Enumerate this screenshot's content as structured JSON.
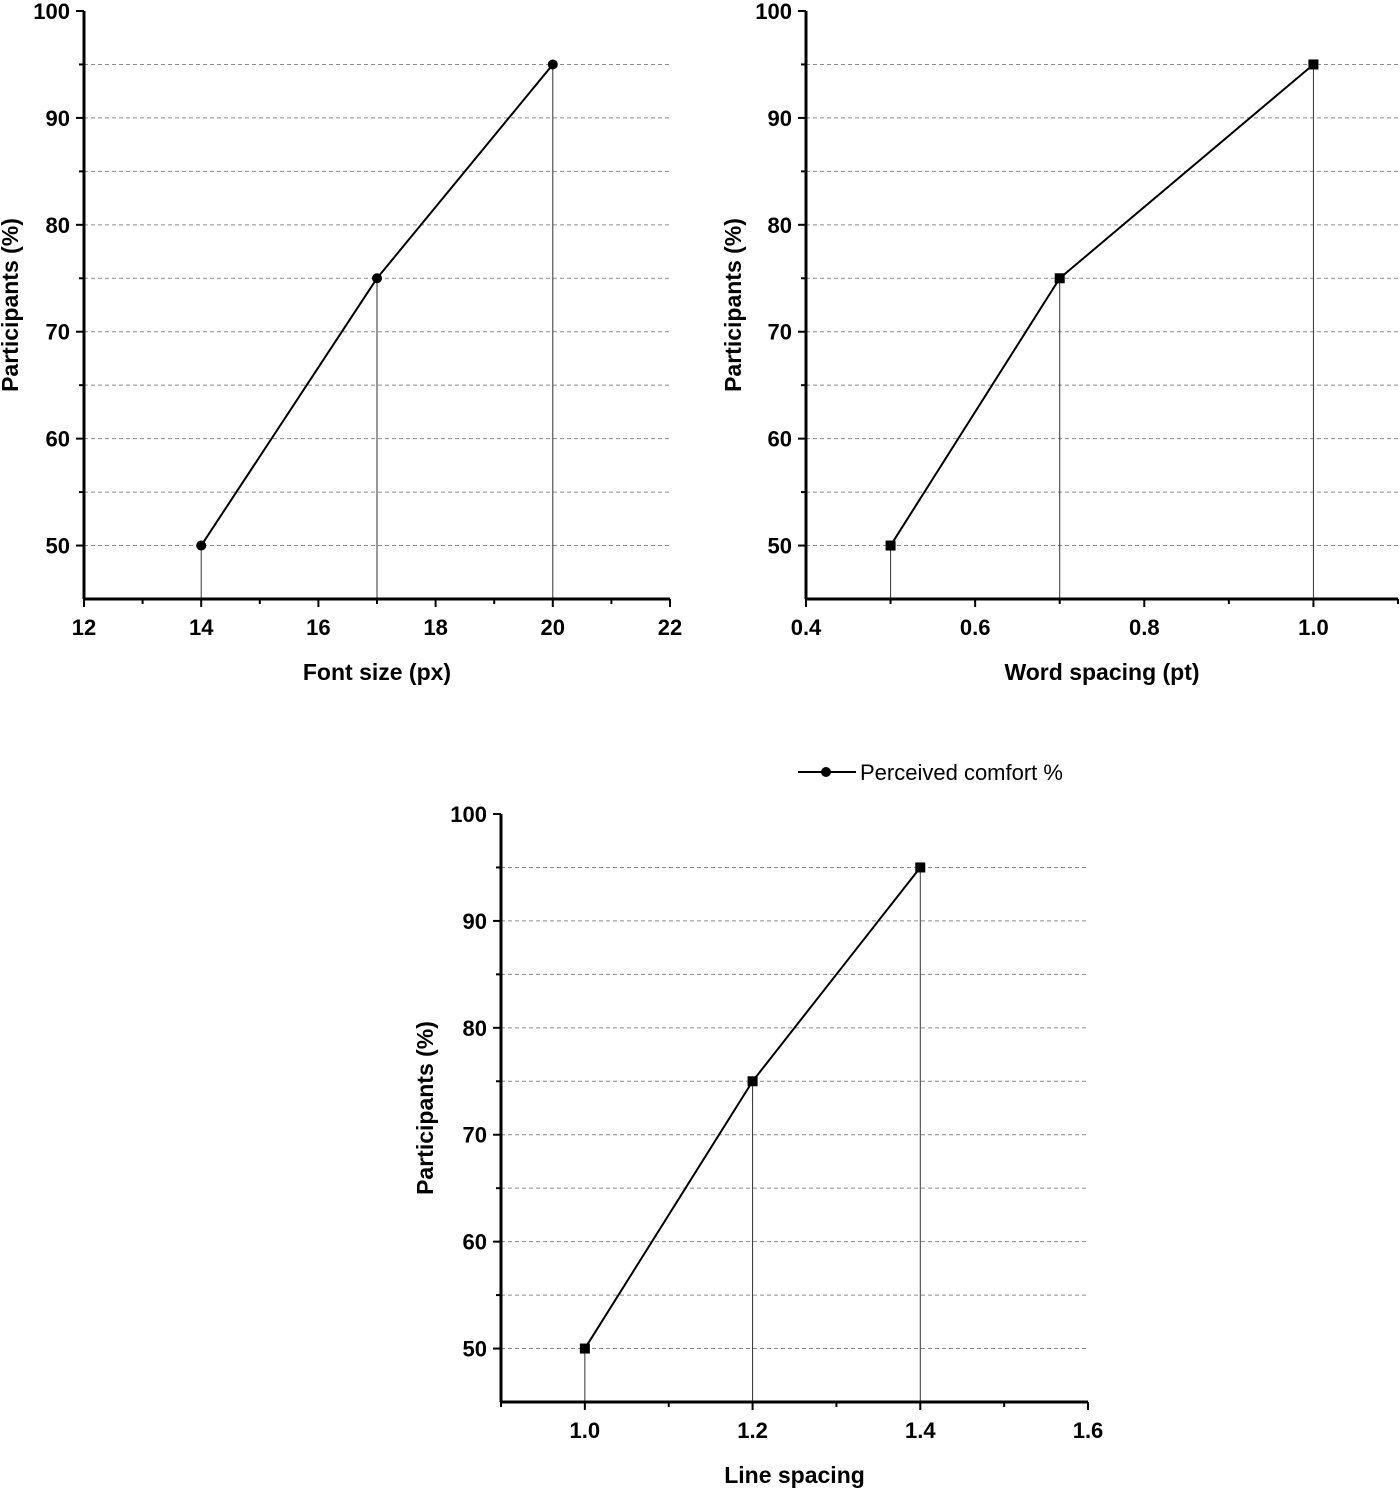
{
  "chart_data": [
    {
      "type": "line",
      "xlabel": "Font size (px)",
      "ylabel": "Participants (%)",
      "xlim": [
        12,
        22
      ],
      "ylim": [
        45,
        100
      ],
      "x_major_ticks": [
        12,
        14,
        16,
        18,
        20,
        22
      ],
      "x_tick_labels": [
        "12",
        "14",
        "16",
        "18",
        "20",
        "22"
      ],
      "x_minor_ticks": [
        13,
        15,
        17,
        19,
        21
      ],
      "y_major_ticks": [
        50,
        60,
        70,
        80,
        90,
        100
      ],
      "y_tick_labels": [
        "50",
        "60",
        "70",
        "80",
        "90",
        "100"
      ],
      "y_minor_ticks": [
        55,
        65,
        75,
        85,
        95
      ],
      "grid": "horizontal dashed at every 5",
      "drop_lines": true,
      "marker": "circle",
      "series": [
        {
          "x": [
            14,
            17,
            20
          ],
          "values": [
            50,
            75,
            95
          ]
        }
      ]
    },
    {
      "type": "line",
      "xlabel": "Word spacing (pt)",
      "ylabel": "Participants (%)",
      "xlim": [
        0.4,
        1.1
      ],
      "ylim": [
        45,
        100
      ],
      "x_major_ticks": [
        0.4,
        0.6,
        0.8,
        1.0
      ],
      "x_tick_labels": [
        "0.4",
        "0.6",
        "0.8",
        "1.0"
      ],
      "x_minor_ticks": [
        0.5,
        0.7,
        0.9,
        1.1
      ],
      "y_major_ticks": [
        50,
        60,
        70,
        80,
        90,
        100
      ],
      "y_tick_labels": [
        "50",
        "60",
        "70",
        "80",
        "90",
        "100"
      ],
      "y_minor_ticks": [
        55,
        65,
        75,
        85,
        95
      ],
      "grid": "horizontal dashed at every 5",
      "drop_lines": true,
      "marker": "square",
      "series": [
        {
          "x": [
            0.5,
            0.7,
            1.0
          ],
          "values": [
            50,
            75,
            95
          ]
        }
      ]
    },
    {
      "type": "line",
      "xlabel": "Line spacing",
      "ylabel": "Participants (%)",
      "xlim": [
        0.9,
        1.6
      ],
      "ylim": [
        45,
        100
      ],
      "x_major_ticks": [
        1.0,
        1.2,
        1.4,
        1.6
      ],
      "x_tick_labels": [
        "1.0",
        "1.2",
        "1.4",
        "1.6"
      ],
      "x_minor_ticks": [
        0.9,
        1.1,
        1.3,
        1.5
      ],
      "y_major_ticks": [
        50,
        60,
        70,
        80,
        90,
        100
      ],
      "y_tick_labels": [
        "50",
        "60",
        "70",
        "80",
        "90",
        "100"
      ],
      "y_minor_ticks": [
        55,
        65,
        75,
        85,
        95
      ],
      "grid": "horizontal dashed at every 5",
      "drop_lines": true,
      "marker": "square",
      "series": [
        {
          "x": [
            1.0,
            1.2,
            1.4
          ],
          "values": [
            50,
            75,
            95
          ]
        }
      ],
      "legend": {
        "placement": "top-right",
        "entries": [
          {
            "label": "Perceived comfort %",
            "marker": "circle"
          }
        ]
      }
    }
  ]
}
